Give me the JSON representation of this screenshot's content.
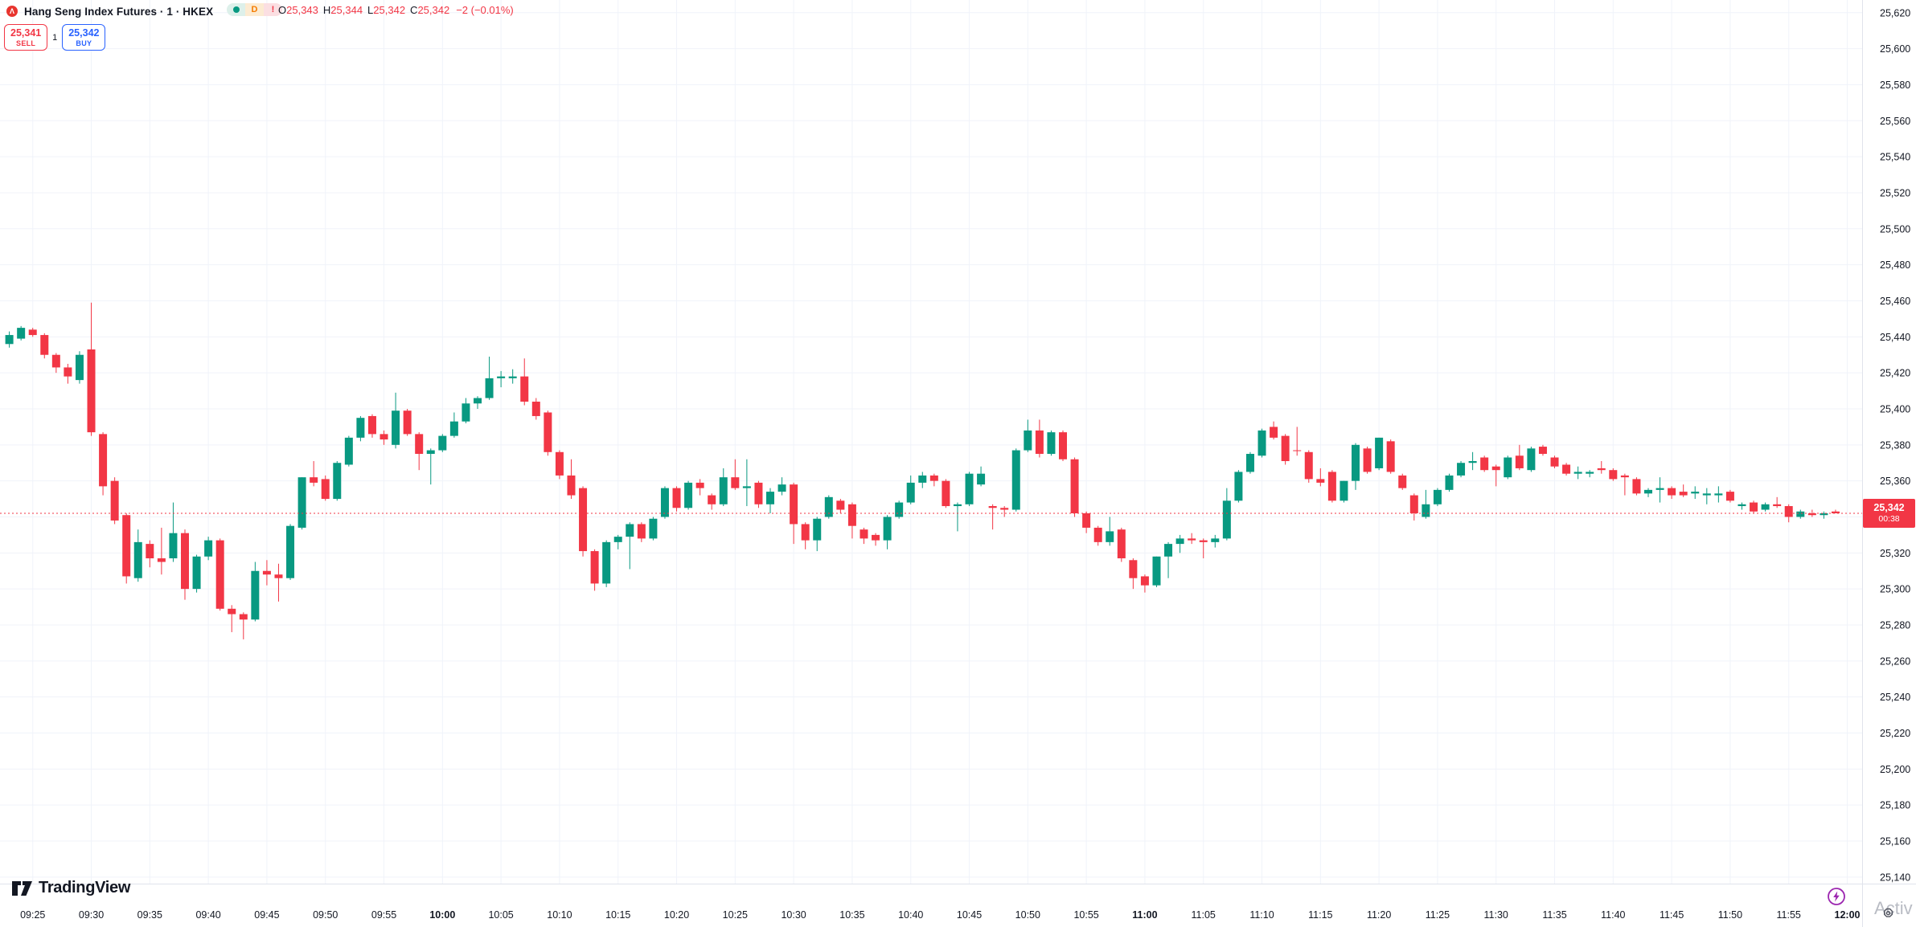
{
  "header": {
    "symbol_title": "Hang Seng Index Futures · 1 · HKEX",
    "logo_glyph": "Λ",
    "badges": {
      "interval_badge": "D",
      "alert_badge": "!"
    },
    "ohlc": {
      "o_label": "O",
      "o": "25,343",
      "h_label": "H",
      "h": "25,344",
      "l_label": "L",
      "l": "25,342",
      "c_label": "C",
      "c": "25,342",
      "change": "−2 (−0.01%)"
    },
    "sell_button": {
      "price": "25,341",
      "label": "SELL"
    },
    "spread": "1",
    "buy_button": {
      "price": "25,342",
      "label": "BUY"
    }
  },
  "attribution": {
    "logo_text": "TradingView"
  },
  "watermark_text": "Activ",
  "price_scale": {
    "labels": [
      "25,620",
      "25,600",
      "25,580",
      "25,560",
      "25,540",
      "25,520",
      "25,500",
      "25,480",
      "25,460",
      "25,440",
      "25,420",
      "25,400",
      "25,380",
      "25,360",
      "25,340",
      "25,320",
      "25,300",
      "25,280",
      "25,260",
      "25,240",
      "25,220",
      "25,200",
      "25,180",
      "25,160",
      "25,140"
    ],
    "last_price": "25,342",
    "countdown": "00:38"
  },
  "time_scale": {
    "labels": [
      "09:25",
      "09:30",
      "09:35",
      "09:40",
      "09:45",
      "09:50",
      "09:55",
      "10:00",
      "10:05",
      "10:10",
      "10:15",
      "10:20",
      "10:25",
      "10:30",
      "10:35",
      "10:40",
      "10:45",
      "10:50",
      "10:55",
      "11:00",
      "11:05",
      "11:10",
      "11:15",
      "11:20",
      "11:25",
      "11:30",
      "11:35",
      "11:40",
      "11:45",
      "11:50",
      "11:55",
      "12:00"
    ],
    "bold_labels": [
      "10:00",
      "11:00",
      "12:00"
    ]
  },
  "colors": {
    "up": "#089981",
    "down": "#f23645",
    "grid": "#f0f3fa",
    "axis_border": "#e0e3eb",
    "axis_text": "#131722",
    "last_price_line": "#f23645",
    "buy_accent": "#2962ff",
    "sell_accent": "#f23645"
  },
  "chart_data": {
    "type": "candlestick",
    "title": "Hang Seng Index Futures",
    "exchange": "HKEX",
    "interval": "1 minute",
    "first_candle_time": "09:23",
    "interval_minutes": 1,
    "x_axis": {
      "start": "09:25",
      "end": "12:00",
      "tick_step_minutes": 5
    },
    "y_axis": {
      "min": 25140,
      "max": 25620,
      "tick_step": 20
    },
    "last_price": 25342,
    "countdown": "00:38",
    "ohlc_format": [
      "open",
      "high",
      "low",
      "close"
    ],
    "candles": [
      [
        25436,
        25443,
        25434,
        25441
      ],
      [
        25439,
        25446,
        25438,
        25445
      ],
      [
        25444,
        25445,
        25440,
        25441
      ],
      [
        25441,
        25442,
        25428,
        25430
      ],
      [
        25430,
        25431,
        25420,
        25423
      ],
      [
        25423,
        25425,
        25414,
        25418
      ],
      [
        25416,
        25432,
        25414,
        25430
      ],
      [
        25433,
        25459,
        25385,
        25387
      ],
      [
        25386,
        25387,
        25352,
        25357
      ],
      [
        25360,
        25362,
        25336,
        25338
      ],
      [
        25341,
        25342,
        25303,
        25307
      ],
      [
        25306,
        25333,
        25304,
        25326
      ],
      [
        25325,
        25327,
        25312,
        25317
      ],
      [
        25317,
        25334,
        25308,
        25315
      ],
      [
        25317,
        25348,
        25315,
        25331
      ],
      [
        25331,
        25333,
        25294,
        25300
      ],
      [
        25300,
        25319,
        25298,
        25318
      ],
      [
        25318,
        25329,
        25316,
        25327
      ],
      [
        25327,
        25328,
        25288,
        25289
      ],
      [
        25289,
        25291,
        25276,
        25286
      ],
      [
        25286,
        25287,
        25272,
        25283
      ],
      [
        25283,
        25315,
        25282,
        25310
      ],
      [
        25310,
        25316,
        25302,
        25308
      ],
      [
        25308,
        25314,
        25293,
        25306
      ],
      [
        25306,
        25336,
        25305,
        25335
      ],
      [
        25334,
        25362,
        25333,
        25362
      ],
      [
        25362,
        25371,
        25357,
        25359
      ],
      [
        25361,
        25363,
        25349,
        25350
      ],
      [
        25350,
        25371,
        25349,
        25370
      ],
      [
        25369,
        25385,
        25368,
        25384
      ],
      [
        25384,
        25396,
        25382,
        25395
      ],
      [
        25396,
        25397,
        25384,
        25386
      ],
      [
        25386,
        25388,
        25380,
        25383
      ],
      [
        25380,
        25409,
        25378,
        25399
      ],
      [
        25399,
        25400,
        25385,
        25386
      ],
      [
        25386,
        25387,
        25366,
        25375
      ],
      [
        25375,
        25378,
        25358,
        25377
      ],
      [
        25377,
        25386,
        25376,
        25385
      ],
      [
        25385,
        25398,
        25384,
        25393
      ],
      [
        25393,
        25406,
        25392,
        25403
      ],
      [
        25403,
        25407,
        25400,
        25406
      ],
      [
        25406,
        25429,
        25405,
        25417
      ],
      [
        25417,
        25421,
        25412,
        25418
      ],
      [
        25417,
        25422,
        25414,
        25418
      ],
      [
        25418,
        25428,
        25402,
        25404
      ],
      [
        25404,
        25406,
        25394,
        25396
      ],
      [
        25398,
        25399,
        25374,
        25376
      ],
      [
        25376,
        25377,
        25361,
        25363
      ],
      [
        25363,
        25372,
        25350,
        25352
      ],
      [
        25356,
        25357,
        25318,
        25321
      ],
      [
        25321,
        25322,
        25299,
        25303
      ],
      [
        25303,
        25327,
        25301,
        25326
      ],
      [
        25326,
        25330,
        25322,
        25329
      ],
      [
        25329,
        25337,
        25311,
        25336
      ],
      [
        25336,
        25337,
        25326,
        25328
      ],
      [
        25328,
        25340,
        25327,
        25339
      ],
      [
        25340,
        25357,
        25339,
        25356
      ],
      [
        25356,
        25357,
        25343,
        25345
      ],
      [
        25345,
        25360,
        25344,
        25359
      ],
      [
        25359,
        25361,
        25352,
        25356
      ],
      [
        25352,
        25353,
        25344,
        25347
      ],
      [
        25347,
        25367,
        25346,
        25362
      ],
      [
        25362,
        25372,
        25355,
        25356
      ],
      [
        25356,
        25372,
        25346,
        25357
      ],
      [
        25359,
        25360,
        25345,
        25347
      ],
      [
        25347,
        25356,
        25342,
        25354
      ],
      [
        25354,
        25362,
        25352,
        25358
      ],
      [
        25358,
        25359,
        25325,
        25336
      ],
      [
        25336,
        25337,
        25322,
        25327
      ],
      [
        25327,
        25340,
        25321,
        25339
      ],
      [
        25340,
        25352,
        25339,
        25351
      ],
      [
        25349,
        25350,
        25342,
        25344
      ],
      [
        25347,
        25348,
        25328,
        25335
      ],
      [
        25333,
        25334,
        25325,
        25328
      ],
      [
        25330,
        25331,
        25324,
        25327
      ],
      [
        25327,
        25341,
        25322,
        25340
      ],
      [
        25340,
        25349,
        25339,
        25348
      ],
      [
        25348,
        25363,
        25347,
        25359
      ],
      [
        25359,
        25365,
        25356,
        25363
      ],
      [
        25363,
        25364,
        25357,
        25360
      ],
      [
        25360,
        25361,
        25345,
        25346
      ],
      [
        25346,
        25348,
        25332,
        25347
      ],
      [
        25347,
        25365,
        25346,
        25364
      ],
      [
        25358,
        25368,
        25357,
        25364
      ],
      [
        25346,
        25347,
        25333,
        25345
      ],
      [
        25345,
        25346,
        25340,
        25344
      ],
      [
        25344,
        25378,
        25343,
        25377
      ],
      [
        25377,
        25394,
        25376,
        25388
      ],
      [
        25388,
        25394,
        25373,
        25375
      ],
      [
        25375,
        25388,
        25374,
        25387
      ],
      [
        25387,
        25388,
        25371,
        25372
      ],
      [
        25372,
        25373,
        25340,
        25342
      ],
      [
        25342,
        25343,
        25331,
        25334
      ],
      [
        25334,
        25335,
        25324,
        25326
      ],
      [
        25326,
        25340,
        25324,
        25332
      ],
      [
        25333,
        25334,
        25315,
        25317
      ],
      [
        25316,
        25317,
        25300,
        25306
      ],
      [
        25307,
        25308,
        25298,
        25302
      ],
      [
        25302,
        25318,
        25301,
        25318
      ],
      [
        25318,
        25326,
        25306,
        25325
      ],
      [
        25325,
        25330,
        25320,
        25328
      ],
      [
        25328,
        25331,
        25325,
        25327
      ],
      [
        25327,
        25328,
        25317,
        25326
      ],
      [
        25326,
        25330,
        25323,
        25328
      ],
      [
        25328,
        25356,
        25327,
        25349
      ],
      [
        25349,
        25366,
        25348,
        25365
      ],
      [
        25365,
        25376,
        25364,
        25375
      ],
      [
        25374,
        25389,
        25373,
        25388
      ],
      [
        25390,
        25393,
        25383,
        25384
      ],
      [
        25385,
        25386,
        25369,
        25371
      ],
      [
        25377,
        25390,
        25374,
        25377
      ],
      [
        25376,
        25377,
        25359,
        25361
      ],
      [
        25361,
        25367,
        25357,
        25359
      ],
      [
        25365,
        25366,
        25348,
        25349
      ],
      [
        25349,
        25360,
        25348,
        25360
      ],
      [
        25360,
        25381,
        25355,
        25380
      ],
      [
        25378,
        25379,
        25364,
        25365
      ],
      [
        25367,
        25384,
        25366,
        25384
      ],
      [
        25382,
        25383,
        25364,
        25365
      ],
      [
        25363,
        25364,
        25355,
        25356
      ],
      [
        25352,
        25353,
        25338,
        25342
      ],
      [
        25340,
        25355,
        25339,
        25347
      ],
      [
        25347,
        25356,
        25346,
        25355
      ],
      [
        25355,
        25364,
        25354,
        25363
      ],
      [
        25363,
        25371,
        25362,
        25370
      ],
      [
        25370,
        25376,
        25366,
        25371
      ],
      [
        25373,
        25374,
        25365,
        25366
      ],
      [
        25368,
        25369,
        25357,
        25366
      ],
      [
        25362,
        25374,
        25361,
        25373
      ],
      [
        25374,
        25380,
        25366,
        25367
      ],
      [
        25366,
        25379,
        25365,
        25378
      ],
      [
        25379,
        25380,
        25374,
        25375
      ],
      [
        25373,
        25374,
        25367,
        25368
      ],
      [
        25369,
        25370,
        25363,
        25364
      ],
      [
        25364,
        25368,
        25361,
        25365
      ],
      [
        25364,
        25366,
        25362,
        25365
      ],
      [
        25367,
        25371,
        25364,
        25366
      ],
      [
        25366,
        25367,
        25360,
        25361
      ],
      [
        25363,
        25364,
        25352,
        25362
      ],
      [
        25361,
        25362,
        25352,
        25353
      ],
      [
        25353,
        25356,
        25351,
        25355
      ],
      [
        25355,
        25362,
        25348,
        25356
      ],
      [
        25356,
        25357,
        25350,
        25352
      ],
      [
        25354,
        25358,
        25351,
        25352
      ],
      [
        25353,
        25357,
        25350,
        25354
      ],
      [
        25352,
        25356,
        25347,
        25353
      ],
      [
        25352,
        25357,
        25348,
        25353
      ],
      [
        25354,
        25355,
        25348,
        25349
      ],
      [
        25346,
        25348,
        25344,
        25347
      ],
      [
        25348,
        25349,
        25342,
        25343
      ],
      [
        25344,
        25348,
        25343,
        25347
      ],
      [
        25347,
        25351,
        25345,
        25346
      ],
      [
        25346,
        25347,
        25337,
        25340
      ],
      [
        25340,
        25344,
        25339,
        25343
      ],
      [
        25342,
        25344,
        25340,
        25341
      ],
      [
        25341,
        25343,
        25339,
        25342
      ],
      [
        25343,
        25344,
        25342,
        25342
      ]
    ]
  }
}
